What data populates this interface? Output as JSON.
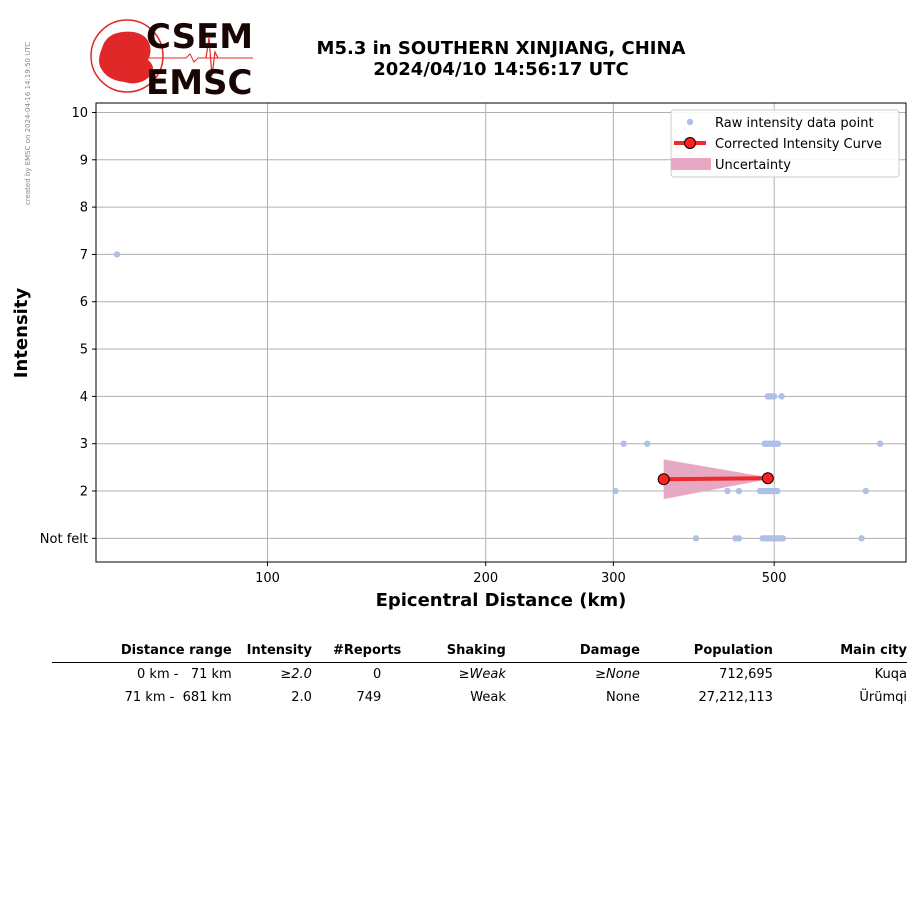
{
  "side_note": "created by EMSC on 2024-04-16 14:19:50 UTC",
  "logo": {
    "line1": "CSEM",
    "line2": "EMSC"
  },
  "title": {
    "line1": "M5.3 in SOUTHERN XINJIANG, CHINA",
    "line2": "2024/04/10 14:56:17 UTC"
  },
  "chart_data": {
    "type": "scatter",
    "xlabel": "Epicentral Distance (km)",
    "ylabel": "Intensity",
    "x_scale": "log",
    "xlim": [
      58,
      760
    ],
    "ylim": [
      0.5,
      10.2
    ],
    "x_ticks": [
      100,
      200,
      300,
      500
    ],
    "x_tick_labels": [
      "100",
      "200",
      "300",
      "500"
    ],
    "y_ticks": [
      1,
      2,
      3,
      4,
      5,
      6,
      7,
      8,
      9,
      10
    ],
    "y_tick_labels": [
      "Not felt",
      "2",
      "3",
      "4",
      "5",
      "6",
      "7",
      "8",
      "9",
      "10"
    ],
    "grid": true,
    "legend_position": "top-right",
    "legend": [
      "Raw intensity data point",
      "Corrected Intensity Curve",
      "Uncertainty"
    ],
    "colors": {
      "raw": "#b0bfe8",
      "curve": "#ee2a2a",
      "marker": "#ff2020",
      "uncertainty": "#e6a8c2"
    },
    "raw_points": [
      [
        62,
        7
      ],
      [
        310,
        3
      ],
      [
        334,
        3
      ],
      [
        485,
        3
      ],
      [
        488,
        3
      ],
      [
        490,
        3
      ],
      [
        492,
        3
      ],
      [
        495,
        3
      ],
      [
        498,
        3
      ],
      [
        502,
        3
      ],
      [
        506,
        3
      ],
      [
        700,
        3
      ],
      [
        490,
        4
      ],
      [
        493,
        4
      ],
      [
        496,
        4
      ],
      [
        500,
        4
      ],
      [
        512,
        4
      ],
      [
        302,
        2
      ],
      [
        431,
        2
      ],
      [
        447,
        2
      ],
      [
        478,
        2
      ],
      [
        482,
        2
      ],
      [
        485,
        2
      ],
      [
        488,
        2
      ],
      [
        491,
        2
      ],
      [
        494,
        2
      ],
      [
        497,
        2
      ],
      [
        500,
        2
      ],
      [
        503,
        2
      ],
      [
        505,
        2
      ],
      [
        669,
        2
      ],
      [
        390,
        1
      ],
      [
        442,
        1
      ],
      [
        447,
        1
      ],
      [
        482,
        1
      ],
      [
        486,
        1
      ],
      [
        489,
        1
      ],
      [
        492,
        1
      ],
      [
        495,
        1
      ],
      [
        498,
        1
      ],
      [
        501,
        1
      ],
      [
        505,
        1
      ],
      [
        509,
        1
      ],
      [
        514,
        1
      ],
      [
        660,
        1
      ]
    ],
    "curve": {
      "x": [
        352,
        490
      ],
      "y": [
        2.25,
        2.27
      ]
    },
    "uncertainty": {
      "x": [
        352,
        490
      ],
      "upper": [
        2.67,
        2.29
      ],
      "lower": [
        1.83,
        2.25
      ]
    }
  },
  "table": {
    "headers": [
      "Distance range",
      "Intensity",
      "#Reports",
      "Shaking",
      "Damage",
      "Population",
      "Main city"
    ],
    "rows": [
      {
        "range": "0 km -   71 km",
        "intensity": "≥2.0",
        "reports": "0",
        "shaking": "≥Weak",
        "damage": "≥None",
        "population": "712,695",
        "city": "Kuqa"
      },
      {
        "range": "71 km -  681 km",
        "intensity": "2.0",
        "reports": "749",
        "shaking": "Weak",
        "damage": "None",
        "population": "27,212,113",
        "city": "Ürümqi"
      }
    ]
  }
}
